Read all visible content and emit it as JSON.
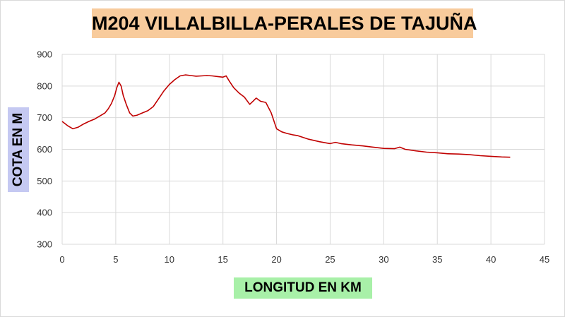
{
  "chart_data": {
    "type": "line",
    "title": "M204 VILLALBILLA-PERALES DE TAJUÑA",
    "xlabel": "LONGITUD EN KM",
    "ylabel": "COTA EN M",
    "xlim": [
      0,
      45
    ],
    "ylim": [
      300,
      900
    ],
    "xticks": [
      0,
      5,
      10,
      15,
      20,
      25,
      30,
      35,
      40,
      45
    ],
    "yticks": [
      300,
      400,
      500,
      600,
      700,
      800,
      900
    ],
    "grid": true,
    "legend": "none",
    "series": [
      {
        "color": "#c00000",
        "x": [
          0,
          0.5,
          1,
          1.5,
          2,
          2.5,
          3,
          3.5,
          4,
          4.3,
          4.6,
          4.9,
          5.1,
          5.3,
          5.5,
          5.7,
          6.0,
          6.3,
          6.6,
          7.0,
          7.5,
          8,
          8.5,
          9,
          9.5,
          10,
          10.5,
          11,
          11.5,
          12,
          12.5,
          13,
          13.5,
          14,
          14.5,
          15,
          15.3,
          15.6,
          16,
          16.5,
          17,
          17.5,
          17.8,
          18.1,
          18.5,
          19,
          19.5,
          20,
          20.5,
          21,
          21.5,
          22,
          23,
          24,
          25,
          25.5,
          26,
          27,
          28,
          29,
          30,
          31,
          31.5,
          32,
          33,
          34,
          35,
          36,
          37,
          38,
          39,
          40,
          41,
          41.8
        ],
        "y": [
          688,
          675,
          665,
          670,
          680,
          688,
          695,
          705,
          715,
          728,
          745,
          770,
          795,
          812,
          800,
          770,
          740,
          715,
          705,
          708,
          715,
          722,
          735,
          760,
          785,
          805,
          820,
          832,
          835,
          833,
          831,
          832,
          833,
          832,
          830,
          828,
          832,
          815,
          795,
          778,
          765,
          742,
          752,
          762,
          752,
          748,
          715,
          665,
          655,
          650,
          646,
          643,
          632,
          624,
          618,
          622,
          618,
          614,
          611,
          607,
          603,
          602,
          607,
          600,
          595,
          591,
          589,
          586,
          585,
          583,
          580,
          578,
          576,
          575
        ]
      }
    ]
  }
}
